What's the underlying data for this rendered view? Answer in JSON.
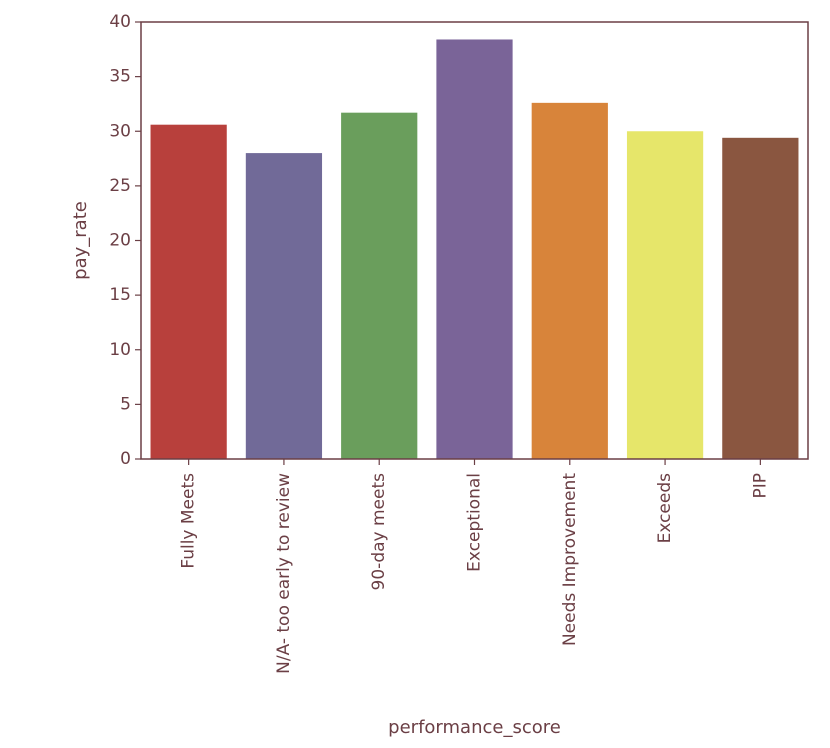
{
  "chart_data": {
    "type": "bar",
    "title": "",
    "xlabel": "performance_score",
    "ylabel": "pay_rate",
    "categories": [
      "Fully Meets",
      "N/A- too early to review",
      "90-day meets",
      "Exceptional",
      "Needs Improvement",
      "Exceeds",
      "PIP"
    ],
    "values": [
      30.6,
      28.0,
      31.7,
      38.4,
      32.6,
      30.0,
      29.4
    ],
    "colors": [
      "#b8403c",
      "#716a98",
      "#6a9e5c",
      "#7a6498",
      "#d8843a",
      "#e6e66a",
      "#8a5640"
    ],
    "ylim": [
      0,
      40
    ],
    "yticks": [
      0,
      5,
      10,
      15,
      20,
      25,
      30,
      35,
      40
    ],
    "grid": false,
    "legend": "none"
  }
}
